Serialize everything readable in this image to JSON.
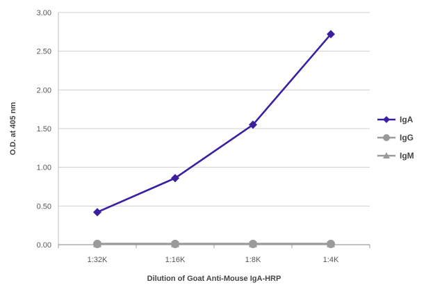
{
  "chart_data": {
    "type": "line",
    "categories": [
      "1:32K",
      "1:16K",
      "1:8K",
      "1:4K"
    ],
    "series": [
      {
        "name": "IgA",
        "values": [
          0.42,
          0.86,
          1.55,
          2.72
        ],
        "color": "#3b1fa0",
        "marker": "diamond"
      },
      {
        "name": "IgG",
        "values": [
          0.01,
          0.01,
          0.01,
          0.01
        ],
        "color": "#9a9a9a",
        "marker": "circle"
      },
      {
        "name": "IgM",
        "values": [
          0.01,
          0.01,
          0.01,
          0.01
        ],
        "color": "#9a9a9a",
        "marker": "triangle"
      }
    ],
    "title": "",
    "xlabel": "Dilution of Goat Anti-Mouse IgA-HRP",
    "ylabel": "O.D. at 405 nm",
    "ylim": [
      0,
      3
    ],
    "yticks": [
      "0.00",
      "0.50",
      "1.00",
      "1.50",
      "2.00",
      "2.50",
      "3.00"
    ],
    "grid": true,
    "legend_position": "right"
  }
}
